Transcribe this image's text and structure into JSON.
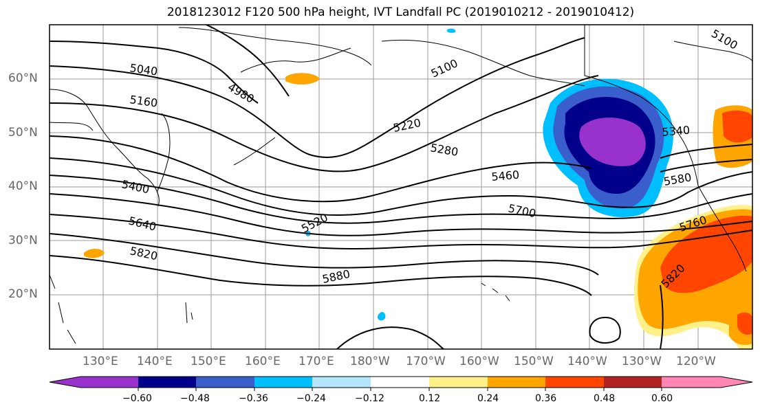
{
  "title": "2018123012 F120 500 hPa height, IVT Landfall PC (2019010212 - 2019010412)",
  "axes": {
    "lat_labels": [
      "60°N",
      "50°N",
      "40°N",
      "30°N",
      "20°N"
    ],
    "lon_labels": [
      "130°E",
      "140°E",
      "150°E",
      "160°E",
      "170°E",
      "180°W",
      "170°W",
      "160°W",
      "150°W",
      "140°W",
      "130°W",
      "120°W"
    ]
  },
  "contour_labels": [
    "5040",
    "4980",
    "5160",
    "5100",
    "5220",
    "5280",
    "5340",
    "5400",
    "5460",
    "5520",
    "5580",
    "5640",
    "5700",
    "5760",
    "5820",
    "5880",
    "5820",
    "5100"
  ],
  "colorbar": {
    "ticks": [
      "−0.60",
      "−0.48",
      "−0.36",
      "−0.24",
      "−0.12",
      "0.12",
      "0.24",
      "0.36",
      "0.48",
      "0.60"
    ],
    "colors": [
      "#9932cc",
      "#00008b",
      "#3a5fcd",
      "#00bfff",
      "#b3e5fc",
      "#ffffff",
      "#fff08a",
      "#ffa500",
      "#ff4500",
      "#b22222",
      "#ff86b4"
    ]
  },
  "chart_data": {
    "type": "contour-map",
    "title": "2018123012 F120 500 hPa height, IVT Landfall PC (2019010212 - 2019010412)",
    "contour_levels": [
      4980,
      5040,
      5100,
      5160,
      5220,
      5280,
      5340,
      5400,
      5460,
      5520,
      5580,
      5640,
      5700,
      5760,
      5820,
      5880
    ],
    "lat_range": [
      "10°N",
      "70°N"
    ],
    "lon_range": [
      "120°E",
      "110°W"
    ],
    "colorbar_ticks": [
      -0.6,
      -0.48,
      -0.36,
      -0.24,
      -0.12,
      0.12,
      0.24,
      0.36,
      0.48,
      0.6
    ]
  }
}
